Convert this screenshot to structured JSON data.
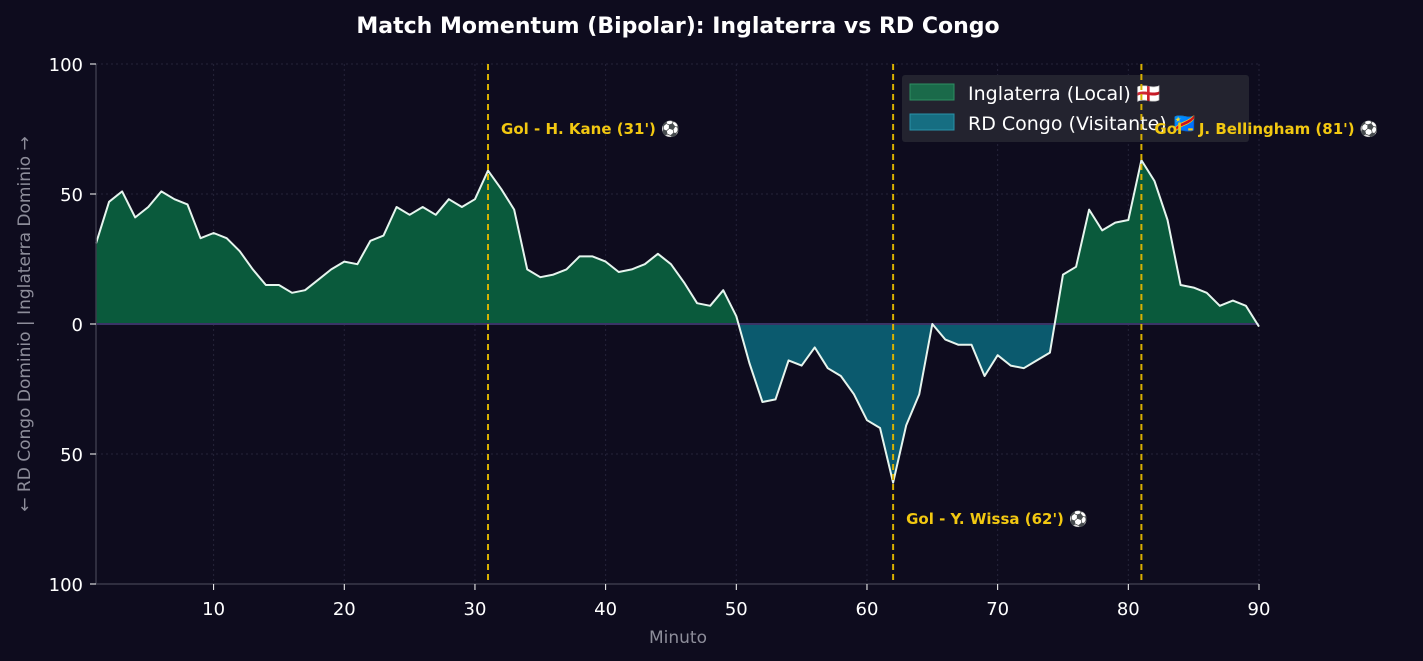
{
  "chart_data": {
    "type": "area",
    "title": "Match Momentum (Bipolar): Inglaterra vs RD Congo",
    "xlabel": "Minuto",
    "ylabel": "← RD Congo Dominio | Inglaterra Dominio →",
    "xlim": [
      1,
      90
    ],
    "ylim": [
      -100,
      100
    ],
    "x_ticks": [
      10,
      20,
      30,
      40,
      50,
      60,
      70,
      80,
      90
    ],
    "y_ticks": [
      {
        "value": 100,
        "label": "100"
      },
      {
        "value": 50,
        "label": "50"
      },
      {
        "value": 0,
        "label": "0"
      },
      {
        "value": -50,
        "label": "50"
      },
      {
        "value": -100,
        "label": "100"
      }
    ],
    "grid": true,
    "legend_position": "top-right",
    "series": [
      {
        "name": "Inglaterra (Local) 🏴󠁧󠁢󠁥󠁮󠁧󠁿",
        "color": "#0a5a3c",
        "legend_color": "#1a6a4a",
        "sign": "positive"
      },
      {
        "name": "RD Congo (Visitante) 🇨🇩",
        "color": "#0b5a6e",
        "legend_color": "#166e82",
        "sign": "negative"
      }
    ],
    "x": [
      1,
      2,
      3,
      4,
      5,
      6,
      7,
      8,
      9,
      10,
      11,
      12,
      13,
      14,
      15,
      16,
      17,
      18,
      19,
      20,
      21,
      22,
      23,
      24,
      25,
      26,
      27,
      28,
      29,
      30,
      31,
      32,
      33,
      34,
      35,
      36,
      37,
      38,
      39,
      40,
      41,
      42,
      43,
      44,
      45,
      46,
      47,
      48,
      49,
      50,
      51,
      52,
      53,
      54,
      55,
      56,
      57,
      58,
      59,
      60,
      61,
      62,
      63,
      64,
      65,
      66,
      67,
      68,
      69,
      70,
      71,
      72,
      73,
      74,
      75,
      76,
      77,
      78,
      79,
      80,
      81,
      82,
      83,
      84,
      85,
      86,
      87,
      88,
      89,
      90
    ],
    "values": [
      31,
      47,
      51,
      41,
      45,
      51,
      48,
      46,
      33,
      35,
      33,
      28,
      21,
      15,
      15,
      12,
      13,
      17,
      21,
      24,
      23,
      32,
      34,
      45,
      42,
      45,
      42,
      48,
      45,
      48,
      59,
      52,
      44,
      21,
      18,
      19,
      21,
      26,
      26,
      24,
      20,
      21,
      23,
      27,
      23,
      16,
      8,
      7,
      13,
      3,
      -15,
      -30,
      -29,
      -14,
      -16,
      -9,
      -17,
      -20,
      -27,
      -37,
      -40,
      -61,
      -39,
      -27,
      0,
      -6,
      -8,
      -8,
      -20,
      -12,
      -16,
      -17,
      -14,
      -11,
      19,
      22,
      44,
      36,
      39,
      40,
      63,
      55,
      40,
      15,
      14,
      12,
      7,
      9,
      7,
      -1
    ],
    "annotations": [
      {
        "x": 31,
        "label": "Gol - H. Kane (31') ⚽",
        "position": "top"
      },
      {
        "x": 62,
        "label": "Gol - Y. Wissa (62') ⚽",
        "position": "bottom"
      },
      {
        "x": 81,
        "label": "Gol - J. Bellingham (81') ⚽",
        "position": "top"
      }
    ],
    "line_color": "#e6f5ee",
    "goal_line_color": "#d9b100"
  }
}
